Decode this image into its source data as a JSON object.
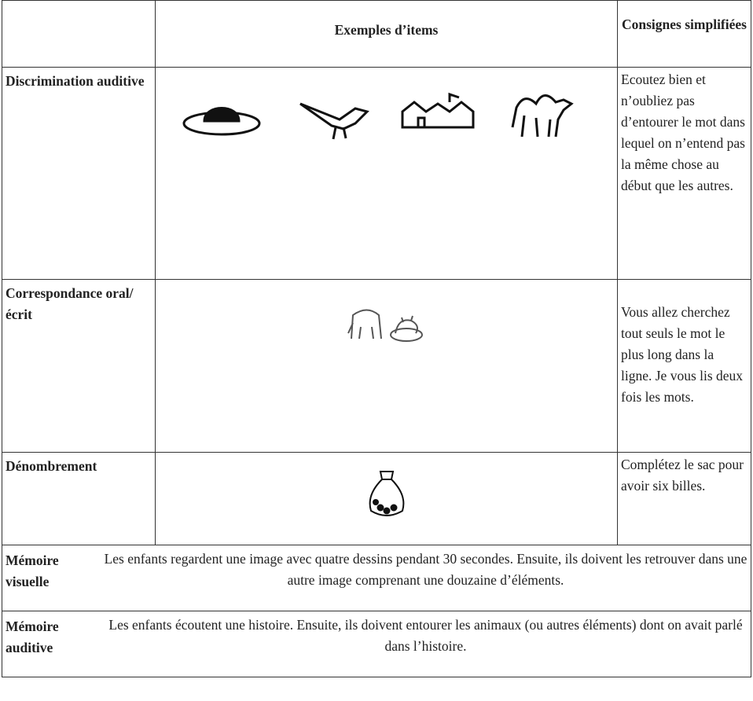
{
  "table": {
    "header": {
      "examples": "Exemples d’items",
      "instructions": "Consignes simplifiées"
    },
    "rows": [
      {
        "label": "Discrimination auditive",
        "instruction": "Ecoutez bien et n’oubliez pas d’entourer le mot dans lequel on n’entend pas la même chose au début que les autres."
      },
      {
        "label": "Correspondance oral/écrit",
        "instruction": "Vous allez cherchez tout seuls le mot le plus long dans la ligne. Je vous lis deux fois les mots."
      },
      {
        "label": "Dénombrement",
        "instruction": "Complétez le sac pour avoir six billes."
      },
      {
        "label": "Mémoire visuelle",
        "description": "Les enfants regardent une image avec quatre dessins pendant 30 secondes. Ensuite, ils doivent les retrouver dans une autre image comprenant une douzaine d’éléments."
      },
      {
        "label": "Mémoire auditive",
        "description": "Les enfants écoutent une histoire. Ensuite, ils doivent entourer les animaux (ou autres éléments) dont on avait parlé dans l’histoire."
      }
    ]
  }
}
